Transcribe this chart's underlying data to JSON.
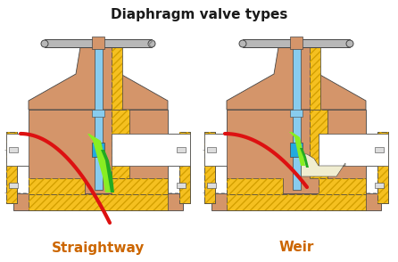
{
  "title": "Diaphragm valve types",
  "title_fontsize": 11,
  "title_color": "#1a1a1a",
  "label_left": "Straightway",
  "label_right": "Weir",
  "label_fontsize": 11,
  "label_color": "#cc6600",
  "bg_color": "#ffffff",
  "colors": {
    "body": "#d4956a",
    "hatch_fill": "#f5c020",
    "hatch_line": "#d4a000",
    "stem_blue": "#88ccee",
    "diaphragm_red": "#dd1111",
    "green_dark": "#22aa22",
    "green_light": "#88ee22",
    "blue_accent": "#22aadd",
    "cream": "#f0edd0",
    "gray_handle": "#b8b8b8",
    "outline": "#444444",
    "white_flow": "#ffffff",
    "dashed": "#aaaaaa",
    "gray_light": "#cccccc"
  },
  "fig_width": 4.46,
  "fig_height": 2.94,
  "dpi": 100
}
